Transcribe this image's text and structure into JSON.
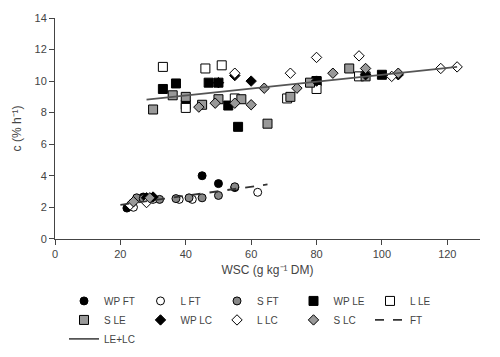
{
  "chart_data": {
    "type": "scatter",
    "xlabel": "WSC (g kg⁻¹ DM)",
    "ylabel": "c (% h⁻¹)",
    "xlim": [
      0,
      130
    ],
    "ylim": [
      0,
      14
    ],
    "xticks": [
      0,
      20,
      40,
      60,
      80,
      100,
      120
    ],
    "yticks": [
      0,
      2,
      4,
      6,
      8,
      10,
      12,
      14
    ],
    "grid": false,
    "legend": "bottom",
    "series": [
      {
        "name": "WP FT",
        "type": "scatter",
        "marker": "circle",
        "color": "#000000",
        "x": [
          22,
          27,
          45,
          50,
          55
        ],
        "values": [
          1.95,
          2.65,
          4.0,
          3.5,
          3.25
        ]
      },
      {
        "name": "L FT",
        "type": "scatter",
        "marker": "circle",
        "color": "#ffffff",
        "x": [
          24,
          30,
          38,
          42,
          62
        ],
        "values": [
          2.0,
          2.5,
          2.5,
          2.5,
          2.95
        ]
      },
      {
        "name": "S FT",
        "type": "scatter",
        "marker": "circle",
        "color": "#888888",
        "x": [
          25,
          27,
          32,
          37,
          41,
          45,
          50,
          55
        ],
        "values": [
          2.6,
          2.55,
          2.5,
          2.55,
          2.6,
          2.6,
          2.75,
          3.3
        ]
      },
      {
        "name": "WP LE",
        "type": "scatter",
        "marker": "square",
        "color": "#000000",
        "x": [
          33,
          37,
          40,
          47,
          50,
          53,
          56,
          80,
          80,
          100
        ],
        "values": [
          9.5,
          9.85,
          8.5,
          9.9,
          9.9,
          8.45,
          7.1,
          10.0,
          10.0,
          10.4
        ]
      },
      {
        "name": "L LE",
        "type": "scatter",
        "marker": "square",
        "color": "#ffffff",
        "x": [
          33,
          40,
          46,
          51,
          55,
          71,
          80,
          93
        ],
        "values": [
          10.9,
          8.3,
          10.8,
          11.0,
          8.9,
          8.9,
          9.5,
          10.3
        ]
      },
      {
        "name": "S LE",
        "type": "scatter",
        "marker": "square",
        "color": "#999999",
        "x": [
          30,
          36,
          40,
          45,
          50,
          57,
          65,
          72,
          78,
          90,
          95
        ],
        "values": [
          8.2,
          9.1,
          9.0,
          8.5,
          8.85,
          8.85,
          7.3,
          9.0,
          9.9,
          10.8,
          10.3
        ]
      },
      {
        "name": "WP LC",
        "type": "scatter",
        "marker": "diamond",
        "color": "#000000",
        "x": [
          28,
          30,
          50,
          55,
          60,
          80,
          95,
          105
        ],
        "values": [
          2.6,
          2.65,
          9.9,
          10.35,
          10.0,
          10.0,
          10.4,
          10.4
        ]
      },
      {
        "name": "L LC",
        "type": "scatter",
        "marker": "diamond",
        "color": "#ffffff",
        "x": [
          23,
          28,
          55,
          72,
          80,
          93,
          103,
          118,
          123
        ],
        "values": [
          2.15,
          2.3,
          10.5,
          10.5,
          11.5,
          11.6,
          10.3,
          10.8,
          10.9
        ]
      },
      {
        "name": "S LC",
        "type": "scatter",
        "marker": "diamond",
        "color": "#999999",
        "x": [
          24,
          29,
          44,
          49,
          55,
          60,
          64,
          74,
          85,
          95,
          105
        ],
        "values": [
          2.35,
          2.6,
          8.35,
          8.6,
          8.6,
          8.5,
          9.55,
          9.55,
          10.5,
          10.8,
          10.5
        ]
      },
      {
        "name": "FT",
        "type": "line",
        "line_style": "dashed",
        "color": "#333333",
        "x": [
          20,
          65
        ],
        "values": [
          2.15,
          3.45
        ]
      },
      {
        "name": "LE+LC",
        "type": "line",
        "line_style": "solid",
        "color": "#555555",
        "x": [
          28,
          123
        ],
        "values": [
          8.82,
          10.9
        ]
      }
    ]
  }
}
